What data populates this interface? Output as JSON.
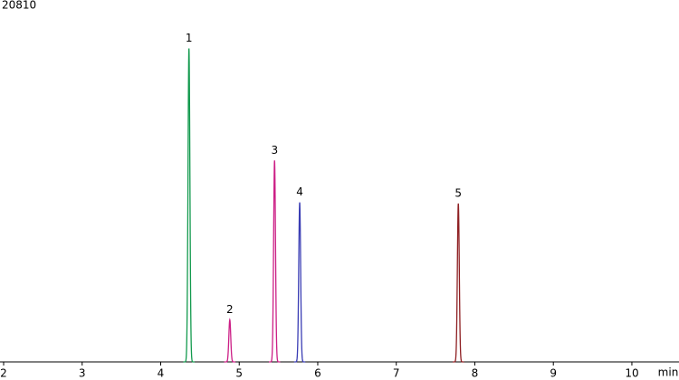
{
  "chart_data": {
    "type": "chromatogram",
    "x_label": "min",
    "xlim": [
      2,
      10.6
    ],
    "xticks": [
      2,
      3,
      4,
      5,
      6,
      7,
      8,
      9,
      10
    ],
    "ylim": [
      0,
      20810
    ],
    "yticks": [
      20810
    ],
    "peaks": [
      {
        "label": "1",
        "time": 4.36,
        "height": 18300,
        "color": "#139a4e"
      },
      {
        "label": "2",
        "time": 4.88,
        "height": 2460,
        "color": "#cc1f86"
      },
      {
        "label": "3",
        "time": 5.45,
        "height": 11760,
        "color": "#cc1f86"
      },
      {
        "label": "4",
        "time": 5.77,
        "height": 9310,
        "color": "#3a3db4"
      },
      {
        "label": "5",
        "time": 7.79,
        "height": 9250,
        "color": "#8e1f22"
      }
    ]
  }
}
